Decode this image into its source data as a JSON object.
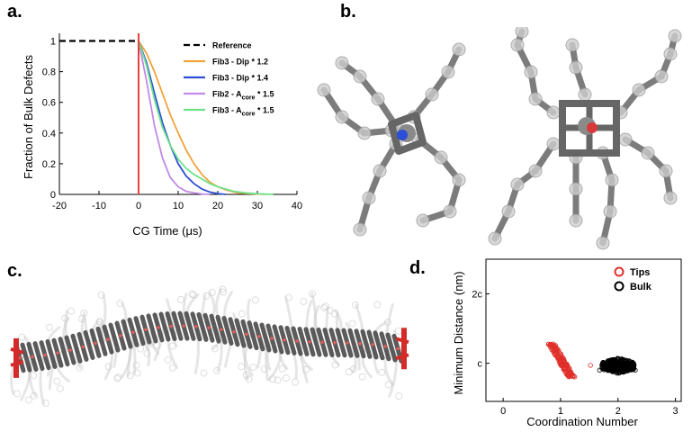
{
  "panels": {
    "a": {
      "letter": "a.",
      "chart_data": {
        "type": "line",
        "xlabel": "CG Time (μs)",
        "ylabel": "Fraction of Bulk Defects",
        "xlim": [
          -20,
          40
        ],
        "ylim": [
          0,
          1.05
        ],
        "xticks": [
          -20,
          -10,
          0,
          10,
          20,
          30,
          40
        ],
        "yticks": [
          0,
          0.2,
          0.4,
          0.6,
          0.8,
          1
        ],
        "ytick_labels": [
          "0",
          "0.2",
          "0.4",
          "0.6",
          "0.8",
          "1"
        ],
        "vline_x": 0,
        "vline_color": "#e8403a",
        "legend_position": "top-right",
        "series": [
          {
            "name": "Reference",
            "name_main": "Reference",
            "name_sub": "",
            "name_tail": "",
            "color": "#000000",
            "dash": true,
            "x": [
              -20,
              -15,
              -10,
              -5,
              0
            ],
            "y": [
              1,
              1,
              1,
              1,
              1
            ]
          },
          {
            "name": "Fib3 - Dip * 1.2",
            "name_main": "Fib3 - Dip * 1.2",
            "name_sub": "",
            "name_tail": "",
            "color": "#f2a23a",
            "dash": false,
            "x": [
              0,
              2,
              4,
              6,
              8,
              10,
              12,
              14,
              16,
              18,
              20,
              22,
              25,
              28,
              32
            ],
            "y": [
              1,
              0.92,
              0.8,
              0.66,
              0.52,
              0.4,
              0.29,
              0.2,
              0.13,
              0.08,
              0.05,
              0.03,
              0.01,
              0.005,
              0
            ]
          },
          {
            "name": "Fib3 - Dip * 1.4",
            "name_main": "Fib3 - Dip * 1.4",
            "name_sub": "",
            "name_tail": "",
            "color": "#2f4fd8",
            "dash": false,
            "x": [
              0,
              2,
              4,
              6,
              8,
              10,
              12,
              14,
              16,
              18,
              20,
              22
            ],
            "y": [
              1,
              0.86,
              0.66,
              0.47,
              0.32,
              0.2,
              0.12,
              0.07,
              0.035,
              0.015,
              0.005,
              0
            ]
          },
          {
            "name": "Fib2 - Acore * 1.5",
            "name_main": "Fib2 - A",
            "name_sub": "core",
            "name_tail": " * 1.5",
            "color": "#c08ae6",
            "dash": false,
            "x": [
              0,
              2,
              4,
              6,
              8,
              10,
              12,
              14,
              16,
              18
            ],
            "y": [
              1,
              0.74,
              0.45,
              0.24,
              0.11,
              0.05,
              0.02,
              0.01,
              0.003,
              0
            ]
          },
          {
            "name": "Fib3 - Acore * 1.5",
            "name_main": "Fib3 - A",
            "name_sub": "core",
            "name_tail": " * 1.5",
            "color": "#6ee28a",
            "dash": false,
            "x": [
              0,
              2,
              4,
              6,
              8,
              10,
              12,
              14,
              16,
              18,
              20,
              22,
              24,
              27,
              30,
              34
            ],
            "y": [
              1,
              0.84,
              0.62,
              0.44,
              0.32,
              0.23,
              0.17,
              0.13,
              0.1,
              0.07,
              0.05,
              0.035,
              0.02,
              0.01,
              0.004,
              0
            ]
          }
        ]
      }
    },
    "b": {
      "letter": "b.",
      "colors": {
        "bond": "#666666",
        "bead": "#cfcfcf",
        "core_n": "#2a4fd6",
        "core_o": "#d63a3a",
        "core": "#8a8a8a"
      }
    },
    "c": {
      "letter": "c.",
      "colors": {
        "backbone": "#4a4a4a",
        "tip": "#d42a2a",
        "ghost": "#c8c8c8",
        "bead": "#e05a5a"
      }
    },
    "d": {
      "letter": "d.",
      "chart_data": {
        "type": "scatter",
        "xlabel": "Coordination Number",
        "ylabel": "Minimum Distance (nm)",
        "xlim": [
          -0.3,
          3.1
        ],
        "xticks": [
          0,
          1,
          2,
          3
        ],
        "yticks_labels": [
          "c",
          "2c"
        ],
        "yticks_values": [
          1,
          2
        ],
        "ylim": [
          0.45,
          2.5
        ],
        "legend_position": "top-right",
        "series": [
          {
            "name": "Tips",
            "color": "#e0302a",
            "cluster": {
              "x_range": [
                0.78,
                1.22
              ],
              "y_range": [
                0.8,
                1.28
              ]
            },
            "outliers": [
              [
                1.52,
                0.97
              ],
              [
                1.1,
                0.85
              ]
            ]
          },
          {
            "name": "Bulk",
            "color": "#000000",
            "cluster": {
              "x_range": [
                1.72,
                2.28
              ],
              "y_range": [
                0.85,
                1.08
              ]
            },
            "outliers": [
              [
                1.68,
                0.9
              ],
              [
                2.3,
                0.9
              ]
            ]
          }
        ]
      }
    }
  }
}
